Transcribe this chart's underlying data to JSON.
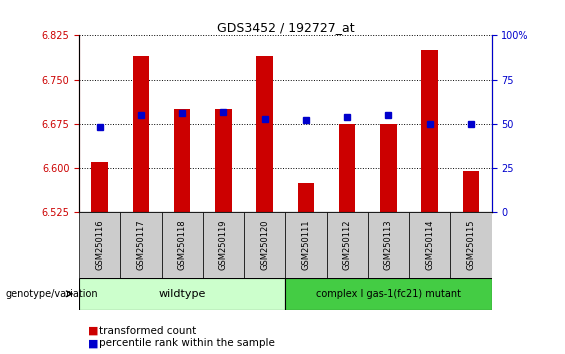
{
  "title": "GDS3452 / 192727_at",
  "samples": [
    "GSM250116",
    "GSM250117",
    "GSM250118",
    "GSM250119",
    "GSM250120",
    "GSM250111",
    "GSM250112",
    "GSM250113",
    "GSM250114",
    "GSM250115"
  ],
  "transformed_counts": [
    6.61,
    6.79,
    6.7,
    6.7,
    6.79,
    6.575,
    6.675,
    6.675,
    6.8,
    6.595
  ],
  "percentile_ranks": [
    48,
    55,
    56,
    57,
    53,
    52,
    54,
    55,
    50,
    50
  ],
  "ylim_left": [
    6.525,
    6.825
  ],
  "ylim_right": [
    0,
    100
  ],
  "yticks_left": [
    6.525,
    6.6,
    6.675,
    6.75,
    6.825
  ],
  "yticks_right": [
    0,
    25,
    50,
    75,
    100
  ],
  "bar_color": "#cc0000",
  "dot_color": "#0000cc",
  "bar_width": 0.4,
  "wildtype_label": "wildtype",
  "mutant_label": "complex I gas-1(fc21) mutant",
  "wildtype_color": "#ccffcc",
  "mutant_color": "#44cc44",
  "section_bg_color": "#cccccc",
  "legend_red_label": "transformed count",
  "legend_blue_label": "percentile rank within the sample",
  "tick_label_color_left": "#cc0000",
  "tick_label_color_right": "#0000cc"
}
